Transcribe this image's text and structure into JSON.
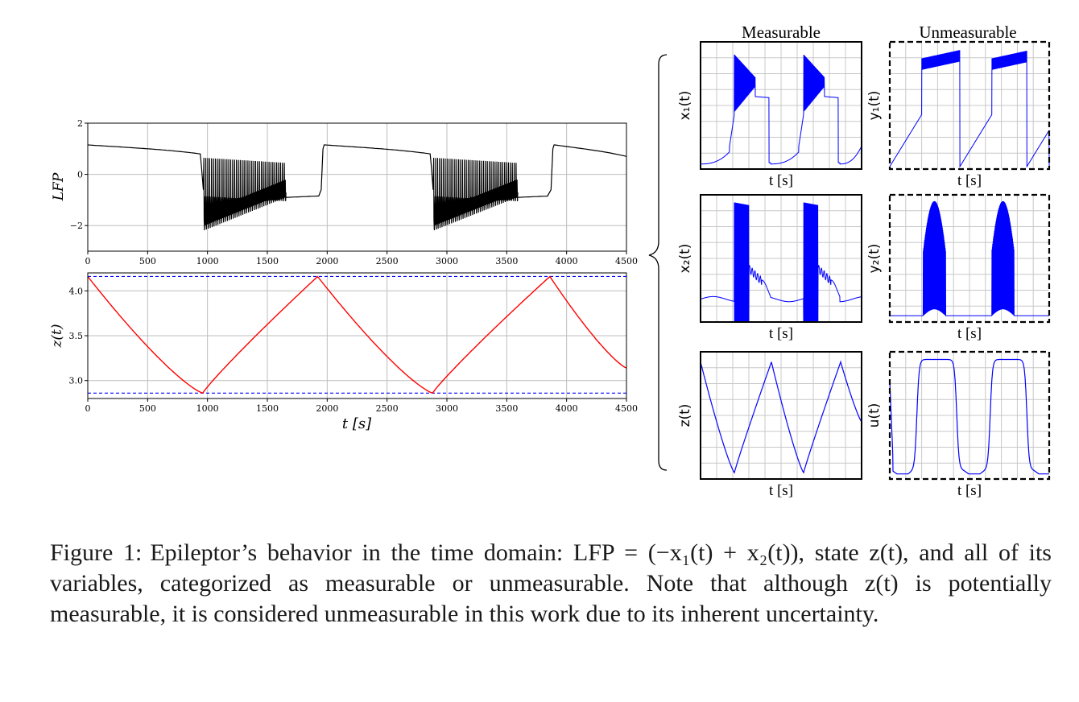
{
  "chart_data": [
    {
      "id": "lfp",
      "type": "line",
      "ylabel": "LFP",
      "xlim": [
        0,
        4500
      ],
      "ylim": [
        -3,
        2
      ],
      "x_ticks": [
        0,
        500,
        1000,
        1500,
        2000,
        2500,
        3000,
        3500,
        4000,
        4500
      ],
      "y_ticks": [
        -2,
        0,
        2
      ],
      "x_tick_labels": [
        "0",
        "500",
        "1000",
        "1500",
        "2000",
        "2500",
        "3000",
        "3500",
        "4000",
        "4500"
      ],
      "y_tick_labels": [
        "−2",
        "0",
        "2"
      ],
      "grid": true,
      "series_color": "#000000",
      "seizures": [
        [
          960,
          1650,
          1960
        ],
        [
          2880,
          3580,
          3880
        ]
      ],
      "baseline_start": 1.15,
      "baseline_end": 0.78,
      "spike_low": -2.4,
      "spike_high": 0.65,
      "post_seizure_level": -0.9
    },
    {
      "id": "z",
      "type": "line",
      "ylabel": "z(t)",
      "xlabel": "t [s]",
      "xlim": [
        0,
        4500
      ],
      "ylim": [
        2.8,
        4.2
      ],
      "x_ticks": [
        0,
        500,
        1000,
        1500,
        2000,
        2500,
        3000,
        3500,
        4000,
        4500
      ],
      "y_ticks": [
        3.0,
        3.5,
        4.0
      ],
      "x_tick_labels": [
        "0",
        "500",
        "1000",
        "1500",
        "2000",
        "2500",
        "3000",
        "3500",
        "4000",
        "4500"
      ],
      "y_tick_labels": [
        "3.0",
        "3.5",
        "4.0"
      ],
      "grid": true,
      "series_color": "#ff0000",
      "threshold_color": "#0000ff",
      "thresholds": [
        4.16,
        2.86
      ],
      "x": [
        0,
        960,
        1920,
        2880,
        3860,
        4500
      ],
      "y": [
        4.16,
        2.86,
        4.16,
        2.86,
        4.16,
        3.14
      ]
    }
  ],
  "panels": {
    "measurable_title": "Measurable",
    "unmeasurable_title": "Unmeasurable",
    "xlabel": "t [s]",
    "line_color": "#0000ff",
    "items": [
      {
        "id": "x1",
        "ylabel": "x₁(t)",
        "group": "measurable"
      },
      {
        "id": "y1",
        "ylabel": "y₁(t)",
        "group": "unmeasurable"
      },
      {
        "id": "x2",
        "ylabel": "x₂(t)",
        "group": "measurable"
      },
      {
        "id": "y2",
        "ylabel": "y₂(t)",
        "group": "unmeasurable"
      },
      {
        "id": "z",
        "ylabel": "z(t)",
        "group": "measurable"
      },
      {
        "id": "u",
        "ylabel": "u(t)",
        "group": "unmeasurable"
      }
    ]
  },
  "caption": {
    "label": "Figure 1:",
    "text": "Epileptor’s behavior in the time domain: LFP = (−x₁(t) + x₂(t)), state z(t), and all of its variables, categorized as measurable or unmeasurable. Note that although z(t) is potentially measurable, it is considered unmeasurable in this work due to its inherent uncertainty."
  }
}
